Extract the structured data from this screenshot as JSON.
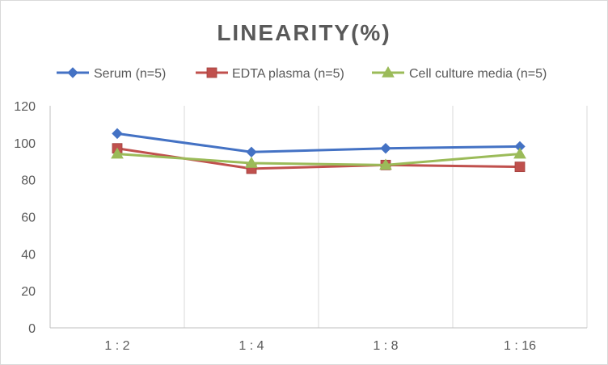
{
  "chart_data": {
    "type": "line",
    "title": "LINEARITY(%)",
    "xlabel": "",
    "ylabel": "",
    "categories": [
      "1:2",
      "1:4",
      "1:8",
      "1:16"
    ],
    "ylim": [
      0,
      120
    ],
    "yticks": [
      0,
      20,
      40,
      60,
      80,
      100,
      120
    ],
    "grid": "vertical",
    "legend_position": "top",
    "series": [
      {
        "name": "Serum (n=5)",
        "values": [
          105,
          95,
          97,
          98
        ],
        "color": "#4472C4",
        "marker": "diamond"
      },
      {
        "name": "EDTA plasma (n=5)",
        "values": [
          97,
          86,
          88,
          87
        ],
        "color": "#C0504D",
        "marker": "square"
      },
      {
        "name": "Cell culture media (n=5)",
        "values": [
          94,
          89,
          88,
          94
        ],
        "color": "#9BBB59",
        "marker": "triangle"
      }
    ]
  }
}
